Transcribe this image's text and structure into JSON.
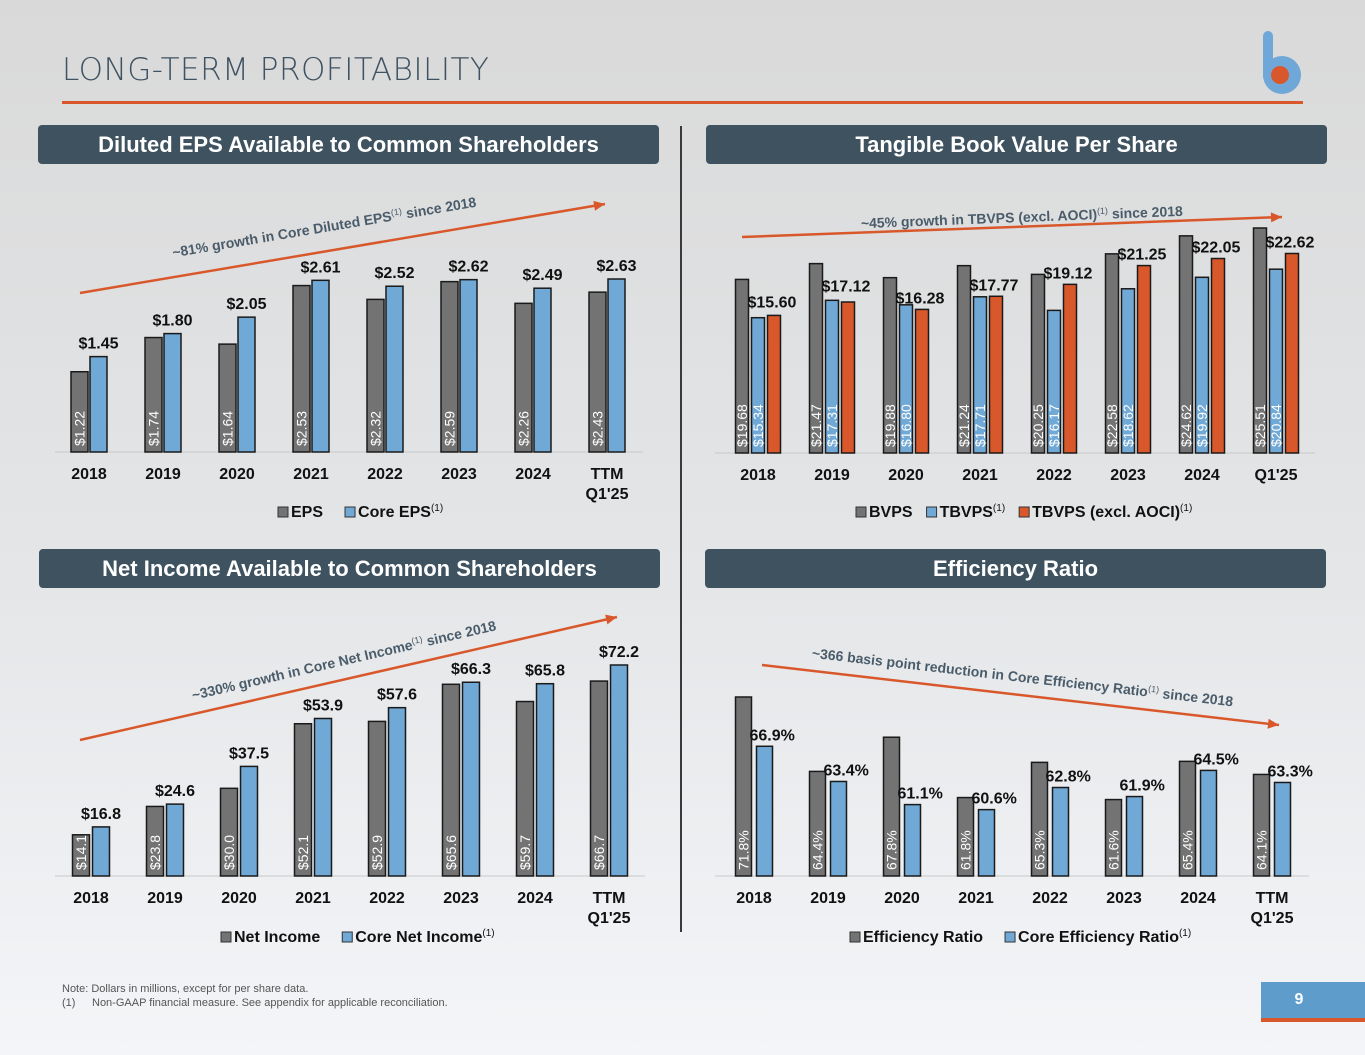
{
  "page": {
    "title": "LONG-TERM PROFITABILITY",
    "page_number": "9",
    "colors": {
      "accent": "#d9582b",
      "header_bg": "#3e5260",
      "gray_bar": "#737373",
      "blue_bar": "#70a8d6",
      "orange_bar": "#d9582b",
      "logo_blue": "#6fa8d8"
    }
  },
  "footnotes": {
    "note": "Note: Dollars in millions, except for per share data.",
    "items": [
      {
        "num": "(1)",
        "text": "Non-GAAP financial measure. See appendix for applicable reconciliation."
      }
    ]
  },
  "chart_data": [
    {
      "id": "eps",
      "type": "bar",
      "title": "Diluted EPS Available to Common Shareholders",
      "categories": [
        "2018",
        "2019",
        "2020",
        "2021",
        "2022",
        "2023",
        "2024",
        "TTM\nQ1'25"
      ],
      "series": [
        {
          "name": "EPS",
          "sup": "",
          "color": "#737373",
          "values": [
            1.22,
            1.74,
            1.64,
            2.53,
            2.32,
            2.59,
            2.26,
            2.43
          ],
          "labels": [
            "$1.22",
            "$1.74",
            "$1.64",
            "$2.53",
            "$2.32",
            "$2.59",
            "$2.26",
            "$2.43"
          ],
          "label_position": "inside-vertical"
        },
        {
          "name": "Core EPS",
          "sup": "(1)",
          "color": "#70a8d6",
          "values": [
            1.45,
            1.8,
            2.05,
            2.61,
            2.52,
            2.62,
            2.49,
            2.63
          ],
          "labels": [
            "$1.45",
            "$1.80",
            "$2.05",
            "$2.61",
            "$2.52",
            "$2.62",
            "$2.49",
            "$2.63"
          ],
          "label_position": "above"
        }
      ],
      "ylim": [
        0,
        2.63
      ],
      "annotation": {
        "text": "~81% growth in Core Diluted EPS",
        "sup": "(1)",
        "suffix": " since 2018",
        "direction": "up"
      },
      "legend": "bottom-center",
      "grid": false
    },
    {
      "id": "tbvps",
      "type": "bar",
      "title": "Tangible Book Value Per Share",
      "categories": [
        "2018",
        "2019",
        "2020",
        "2021",
        "2022",
        "2023",
        "2024",
        "Q1'25"
      ],
      "series": [
        {
          "name": "BVPS",
          "sup": "",
          "color": "#737373",
          "values": [
            19.68,
            21.47,
            19.88,
            21.24,
            20.25,
            22.58,
            24.62,
            25.51
          ],
          "labels": [
            "$19.68",
            "$21.47",
            "$19.88",
            "$21.24",
            "$20.25",
            "$22.58",
            "$24.62",
            "$25.51"
          ],
          "label_position": "inside-vertical"
        },
        {
          "name": "TBVPS",
          "sup": "(1)",
          "color": "#70a8d6",
          "values": [
            15.34,
            17.31,
            16.8,
            17.71,
            16.17,
            18.62,
            19.92,
            20.84
          ],
          "labels": [
            "$15.34",
            "$17.31",
            "$16.80",
            "$17.71",
            "$16.17",
            "$18.62",
            "$19.92",
            "$20.84"
          ],
          "label_position": "inside-vertical"
        },
        {
          "name": "TBVPS (excl. AOCI)",
          "sup": "(1)",
          "color": "#d9582b",
          "values": [
            15.6,
            17.12,
            16.28,
            17.77,
            19.12,
            21.25,
            22.05,
            22.62
          ],
          "labels": [
            "$15.60",
            "$17.12",
            "$16.28",
            "$17.77",
            "$19.12",
            "$21.25",
            "$22.05",
            "$22.62"
          ],
          "label_position": "above"
        }
      ],
      "ylim": [
        0,
        25.51
      ],
      "annotation": {
        "text": "~45% growth in TBVPS (excl. AOCI)",
        "sup": "(1)",
        "suffix": " since 2018",
        "direction": "up"
      },
      "legend": "bottom-center",
      "grid": false
    },
    {
      "id": "net_income",
      "type": "bar",
      "title": "Net Income Available to Common Shareholders",
      "categories": [
        "2018",
        "2019",
        "2020",
        "2021",
        "2022",
        "2023",
        "2024",
        "TTM\nQ1'25"
      ],
      "series": [
        {
          "name": "Net Income",
          "sup": "",
          "color": "#737373",
          "values": [
            14.1,
            23.8,
            30.0,
            52.1,
            52.9,
            65.6,
            59.7,
            66.7
          ],
          "labels": [
            "$14.1",
            "$23.8",
            "$30.0",
            "$52.1",
            "$52.9",
            "$65.6",
            "$59.7",
            "$66.7"
          ],
          "label_position": "inside-vertical"
        },
        {
          "name": "Core Net Income",
          "sup": "(1)",
          "color": "#70a8d6",
          "values": [
            16.8,
            24.6,
            37.5,
            53.9,
            57.6,
            66.3,
            65.8,
            72.2
          ],
          "labels": [
            "$16.8",
            "$24.6",
            "$37.5",
            "$53.9",
            "$57.6",
            "$66.3",
            "$65.8",
            "$72.2"
          ],
          "label_position": "above"
        }
      ],
      "ylim": [
        0,
        72.2
      ],
      "annotation": {
        "text": "~330% growth in Core Net Income",
        "sup": "(1)",
        "suffix": " since 2018",
        "direction": "up"
      },
      "legend": "bottom-center",
      "grid": false
    },
    {
      "id": "efficiency",
      "type": "bar",
      "title": "Efficiency Ratio",
      "categories": [
        "2018",
        "2019",
        "2020",
        "2021",
        "2022",
        "2023",
        "2024",
        "TTM\nQ1'25"
      ],
      "series": [
        {
          "name": "Efficiency Ratio",
          "sup": "",
          "color": "#737373",
          "values": [
            71.8,
            64.4,
            67.8,
            61.8,
            65.3,
            61.6,
            65.4,
            64.1
          ],
          "labels": [
            "71.8%",
            "64.4%",
            "67.8%",
            "61.8%",
            "65.3%",
            "61.6%",
            "65.4%",
            "64.1%"
          ],
          "label_position": "inside-vertical"
        },
        {
          "name": "Core Efficiency Ratio",
          "sup": "(1)",
          "color": "#70a8d6",
          "values": [
            66.9,
            63.4,
            61.1,
            60.6,
            62.8,
            61.9,
            64.5,
            63.3
          ],
          "labels": [
            "66.9%",
            "63.4%",
            "61.1%",
            "60.6%",
            "62.8%",
            "61.9%",
            "64.5%",
            "63.3%"
          ],
          "label_position": "above"
        }
      ],
      "ylim": [
        54,
        71.8
      ],
      "annotation": {
        "text": "~366 basis point reduction in Core Efficiency Ratio",
        "sup": "(1)",
        "suffix": " since 2018",
        "direction": "down"
      },
      "legend": "bottom-center",
      "grid": false
    }
  ]
}
